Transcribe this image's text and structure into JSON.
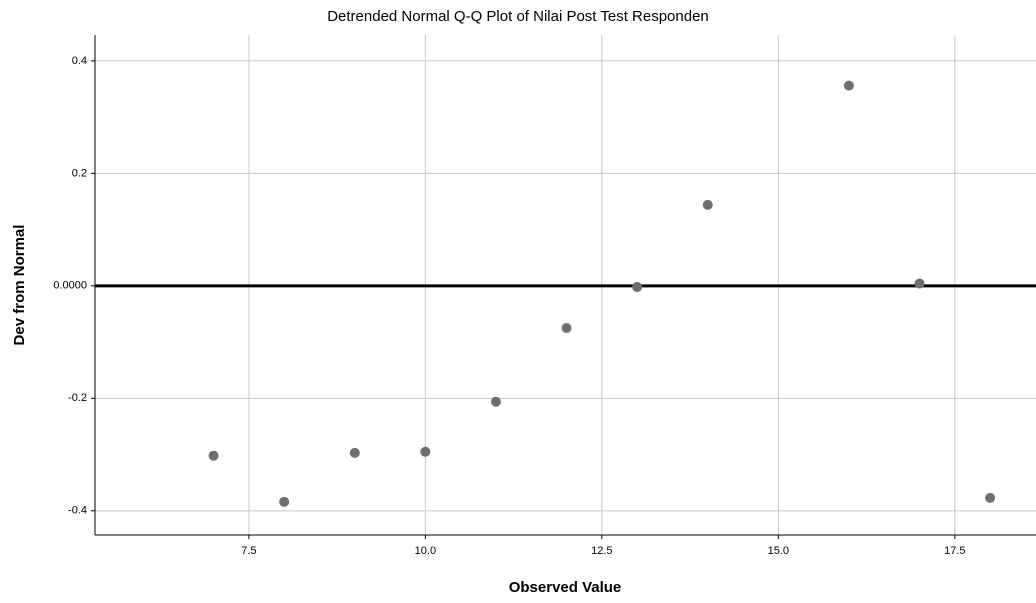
{
  "chart_data": {
    "type": "scatter",
    "title": "Detrended Normal Q-Q Plot of Nilai Post Test Responden",
    "x_label": "Observed Value",
    "y_label": "Dev from Normal",
    "x": [
      7,
      8,
      9,
      10,
      11,
      12,
      13,
      14,
      16,
      17,
      18
    ],
    "values": [
      -0.302,
      -0.384,
      -0.297,
      -0.295,
      -0.206,
      -0.075,
      -0.002,
      0.144,
      0.356,
      0.004,
      -0.377
    ],
    "color": "#6e6e6e",
    "xlim": [
      5.32,
      18.65
    ],
    "ylim": [
      -0.443,
      0.446
    ],
    "xticks": [
      7.5,
      {
        "value": 10,
        "label": "10.0"
      },
      12.5,
      {
        "value": 15,
        "label": "15.0"
      },
      17.5
    ],
    "yticks": [
      0.4,
      0.2,
      {
        "value": 0,
        "label": "0.0000"
      },
      -0.2,
      -0.4
    ],
    "reference_line": 0,
    "grid": true
  }
}
